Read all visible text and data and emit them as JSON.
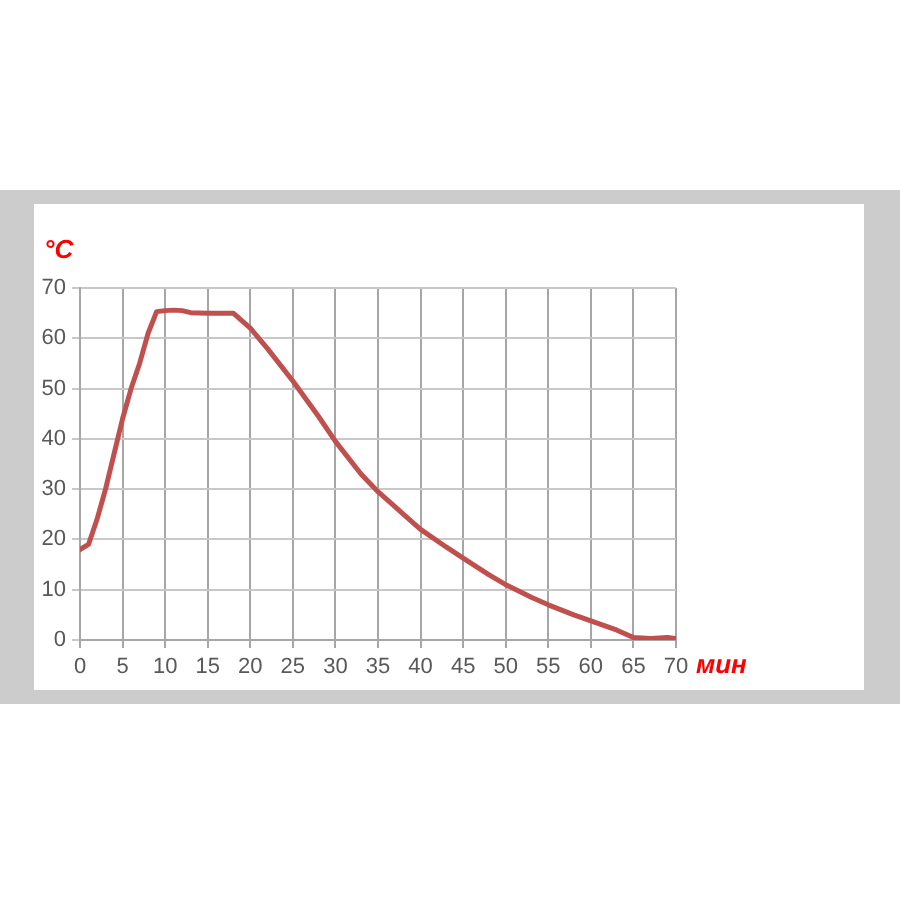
{
  "chart_data": {
    "type": "line",
    "xlabel": "мин",
    "ylabel": "°C",
    "series": [
      {
        "color": "#c0504d",
        "x": [
          0,
          1,
          2,
          3,
          4,
          5,
          6,
          7,
          8,
          9,
          10,
          11,
          12,
          13,
          15,
          18,
          20,
          22,
          25,
          28,
          30,
          33,
          35,
          38,
          40,
          43,
          45,
          48,
          50,
          53,
          55,
          58,
          60,
          63,
          65,
          67,
          69,
          70
        ],
        "values": [
          18,
          19,
          24,
          30,
          37,
          44,
          50,
          55,
          61,
          65.3,
          65.5,
          65.6,
          65.5,
          65.1,
          65,
          65,
          62,
          58,
          51.5,
          44.5,
          39.5,
          33,
          29.5,
          25,
          22,
          18.5,
          16.3,
          13,
          11,
          8.5,
          7,
          5,
          3.8,
          2,
          0.5,
          0.3,
          0.5,
          0.3
        ]
      }
    ],
    "xlim": [
      0,
      70
    ],
    "xticks": [
      0,
      5,
      10,
      15,
      20,
      25,
      30,
      35,
      40,
      45,
      50,
      55,
      60,
      65,
      70
    ],
    "ylim": [
      0,
      70
    ],
    "yticks": [
      0,
      10,
      20,
      30,
      40,
      50,
      60,
      70
    ],
    "grid": true,
    "legend": false,
    "marker": "none",
    "line_style": "solid"
  }
}
